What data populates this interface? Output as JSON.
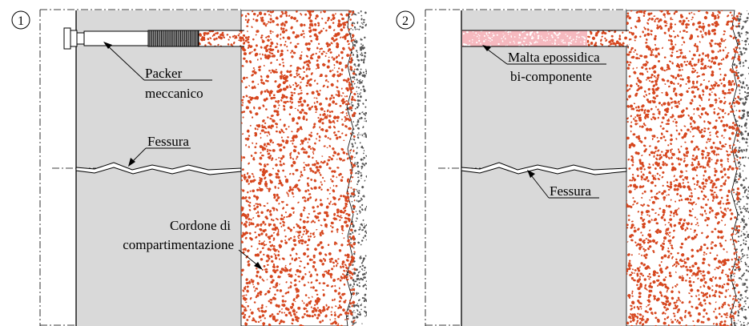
{
  "colors": {
    "concrete": "#d9d9d9",
    "cordon_fill": "#ffffff",
    "cordon_dots": "#d6471f",
    "epoxy_fill": "#f6b9bf",
    "epoxy_dots": "#e8909a",
    "soil_dots": "#555555",
    "line": "#000000"
  },
  "panel1": {
    "number": "1",
    "packer_label_1": "Packer",
    "packer_label_2": "meccanico",
    "crack_label": "Fessura",
    "cordon_label_1": "Cordone di",
    "cordon_label_2": "compartimentazione",
    "packer_icon": "mechanical-packer"
  },
  "panel2": {
    "number": "2",
    "epoxy_label_1": "Malta epossidica",
    "epoxy_label_2": "bi-componente",
    "crack_label": "Fessura"
  }
}
